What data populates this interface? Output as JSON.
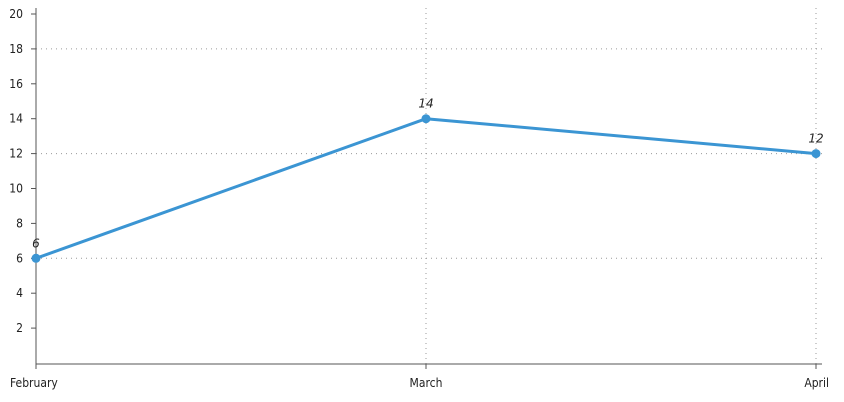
{
  "chart_data": {
    "type": "line",
    "title": "",
    "xlabel": "",
    "ylabel": "",
    "categories": [
      "February",
      "March",
      "April"
    ],
    "series": [
      {
        "values": [
          6,
          14,
          12
        ],
        "color": "#3b95d3"
      }
    ],
    "ylim": [
      0,
      20
    ],
    "yticks": [
      2,
      4,
      6,
      8,
      10,
      12,
      14,
      16,
      18,
      20
    ],
    "grid_y": [
      6,
      12,
      18
    ],
    "grid_x": [
      "March",
      "April"
    ],
    "data_labels": [
      "6",
      "14",
      "12"
    ],
    "legend": "none"
  }
}
